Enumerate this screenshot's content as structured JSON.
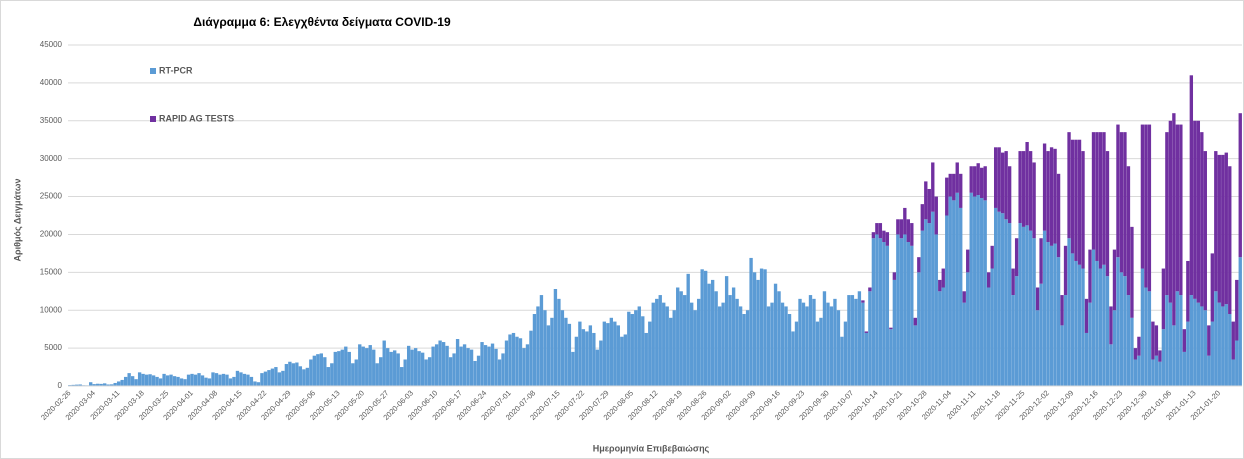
{
  "chart_data": {
    "type": "stacked_bar",
    "title": "Διάγραμμα 6: Ελεγχθέντα δείγματα COVID-19",
    "x_label": "Ημερομηνία Επιβεβαιώσης",
    "y_label": "Αριθμός Δειγμάτων",
    "legend": "upper left",
    "grid": true,
    "ylim": [
      0,
      45000
    ],
    "yticks": [
      0,
      5000,
      10000,
      15000,
      20000,
      25000,
      30000,
      35000,
      40000,
      45000
    ],
    "categories": [
      "2020-02-26",
      null,
      null,
      null,
      null,
      null,
      null,
      "2020-03-04",
      null,
      null,
      null,
      null,
      null,
      null,
      "2020-03-11",
      null,
      null,
      null,
      null,
      null,
      null,
      "2020-03-18",
      null,
      null,
      null,
      null,
      null,
      null,
      "2020-03-25",
      null,
      null,
      null,
      null,
      null,
      null,
      "2020-04-01",
      null,
      null,
      null,
      null,
      null,
      null,
      "2020-04-08",
      null,
      null,
      null,
      null,
      null,
      null,
      "2020-04-15",
      null,
      null,
      null,
      null,
      null,
      null,
      "2020-04-22",
      null,
      null,
      null,
      null,
      null,
      null,
      "2020-04-29",
      null,
      null,
      null,
      null,
      null,
      null,
      "2020-05-06",
      null,
      null,
      null,
      null,
      null,
      null,
      "2020-05-13",
      null,
      null,
      null,
      null,
      null,
      null,
      "2020-05-20",
      null,
      null,
      null,
      null,
      null,
      null,
      "2020-05-27",
      null,
      null,
      null,
      null,
      null,
      null,
      "2020-06-03",
      null,
      null,
      null,
      null,
      null,
      null,
      "2020-06-10",
      null,
      null,
      null,
      null,
      null,
      null,
      "2020-06-17",
      null,
      null,
      null,
      null,
      null,
      null,
      "2020-06-24",
      null,
      null,
      null,
      null,
      null,
      null,
      "2020-07-01",
      null,
      null,
      null,
      null,
      null,
      null,
      "2020-07-08",
      null,
      null,
      null,
      null,
      null,
      null,
      "2020-07-15",
      null,
      null,
      null,
      null,
      null,
      null,
      "2020-07-22",
      null,
      null,
      null,
      null,
      null,
      null,
      "2020-07-29",
      null,
      null,
      null,
      null,
      null,
      null,
      "2020-08-05",
      null,
      null,
      null,
      null,
      null,
      null,
      "2020-08-12",
      null,
      null,
      null,
      null,
      null,
      null,
      "2020-08-19",
      null,
      null,
      null,
      null,
      null,
      null,
      "2020-08-26",
      null,
      null,
      null,
      null,
      null,
      null,
      "2020-09-02",
      null,
      null,
      null,
      null,
      null,
      null,
      "2020-09-09",
      null,
      null,
      null,
      null,
      null,
      null,
      "2020-09-16",
      null,
      null,
      null,
      null,
      null,
      null,
      "2020-09-23",
      null,
      null,
      null,
      null,
      null,
      null,
      "2020-09-30",
      null,
      null,
      null,
      null,
      null,
      null,
      "2020-10-07",
      null,
      null,
      null,
      null,
      null,
      null,
      "2020-10-14",
      null,
      null,
      null,
      null,
      null,
      null,
      "2020-10-21",
      null,
      null,
      null,
      null,
      null,
      null,
      "2020-10-28",
      null,
      null,
      null,
      null,
      null,
      null,
      "2020-11-04",
      null,
      null,
      null,
      null,
      null,
      null,
      "2020-11-11",
      null,
      null,
      null,
      null,
      null,
      null,
      "2020-11-18",
      null,
      null,
      null,
      null,
      null,
      null,
      "2020-11-25",
      null,
      null,
      null,
      null,
      null,
      null,
      "2020-12-02",
      null,
      null,
      null,
      null,
      null,
      null,
      "2020-12-09",
      null,
      null,
      null,
      null,
      null,
      null,
      "2020-12-16",
      null,
      null,
      null,
      null,
      null,
      null,
      "2020-12-23",
      null,
      null,
      null,
      null,
      null,
      null,
      "2020-12-30",
      null,
      null,
      null,
      null,
      null,
      null,
      "2021-01-06",
      null,
      null,
      null,
      null,
      null,
      null,
      "2021-01-13",
      null,
      null,
      null,
      null,
      null,
      null,
      "2021-01-20",
      null,
      null,
      null,
      null,
      null,
      null
    ],
    "series": [
      {
        "name": "RT-PCR",
        "color": "#5b9bd5",
        "values": [
          120,
          150,
          180,
          200,
          100,
          90,
          500,
          250,
          300,
          280,
          350,
          200,
          220,
          400,
          600,
          800,
          1200,
          1700,
          1300,
          900,
          1800,
          1600,
          1500,
          1550,
          1400,
          1200,
          1000,
          1600,
          1400,
          1500,
          1300,
          1200,
          1000,
          900,
          1500,
          1600,
          1500,
          1700,
          1400,
          1100,
          1000,
          1800,
          1700,
          1500,
          1600,
          1500,
          1000,
          1200,
          2000,
          1800,
          1600,
          1500,
          1200,
          600,
          500,
          1700,
          1900,
          2100,
          2300,
          2500,
          1800,
          2000,
          2900,
          3200,
          3000,
          3100,
          2600,
          2200,
          2400,
          3500,
          4000,
          4200,
          4300,
          3800,
          2500,
          3000,
          4500,
          4600,
          4800,
          5200,
          4500,
          3000,
          3500,
          5500,
          5200,
          5000,
          5400,
          4800,
          3000,
          3800,
          6000,
          5000,
          4500,
          4700,
          4300,
          2500,
          3500,
          5300,
          4800,
          5000,
          4600,
          4400,
          3500,
          3800,
          5200,
          5500,
          6000,
          5800,
          5300,
          3800,
          4300,
          6200,
          5200,
          5500,
          5000,
          4800,
          3300,
          4000,
          5800,
          5400,
          5200,
          5600,
          4900,
          3500,
          4300,
          6000,
          6800,
          7000,
          6500,
          6300,
          5000,
          5500,
          7300,
          9500,
          10500,
          12000,
          10000,
          8000,
          9000,
          12800,
          11500,
          10000,
          9000,
          8200,
          4500,
          6500,
          8500,
          7500,
          7200,
          8000,
          7000,
          4800,
          6000,
          8500,
          8300,
          9000,
          8500,
          8000,
          6500,
          6800,
          9800,
          9500,
          10000,
          10500,
          9200,
          7000,
          8500,
          11000,
          11500,
          12000,
          11000,
          10500,
          9000,
          10000,
          13000,
          12500,
          12000,
          14800,
          11000,
          10000,
          11500,
          15400,
          15200,
          13500,
          14000,
          12500,
          10500,
          11000,
          14500,
          12000,
          13000,
          11500,
          10500,
          9500,
          10000,
          16900,
          15000,
          14000,
          15500,
          15400,
          10500,
          11000,
          13500,
          12500,
          11000,
          10500,
          9500,
          7200,
          8500,
          11500,
          11000,
          10500,
          12000,
          11500,
          8500,
          9000,
          12500,
          11000,
          10500,
          11500,
          10000,
          6500,
          8500,
          12000,
          12000,
          11500,
          12500,
          11000,
          7000,
          12500,
          19500,
          20000,
          19500,
          19000,
          18500,
          7500,
          14000,
          20000,
          19500,
          20000,
          19000,
          18500,
          8000,
          15000,
          20500,
          22000,
          21500,
          23000,
          20000,
          12500,
          13000,
          22500,
          25000,
          24500,
          25500,
          23500,
          11000,
          15000,
          25500,
          25000,
          25200,
          24800,
          24500,
          13000,
          15500,
          23500,
          23000,
          22800,
          22000,
          21500,
          12000,
          14500,
          21500,
          21000,
          21200,
          20500,
          19500,
          10000,
          13500,
          20500,
          19000,
          18500,
          18800,
          17000,
          8000,
          12000,
          19500,
          17500,
          16500,
          16000,
          15500,
          7000,
          11000,
          18000,
          16500,
          15500,
          16000,
          14500,
          5500,
          10000,
          17000,
          15000,
          14500,
          12000,
          9000,
          3500,
          4000,
          15500,
          13000,
          12500,
          3500,
          4000,
          3200,
          7500,
          12000,
          11000,
          8000,
          12500,
          12000,
          4500,
          8500,
          12000,
          11500,
          11000,
          10500,
          10000,
          4000,
          8500,
          12500,
          11000,
          10500,
          10800,
          9500,
          3500,
          6000,
          17000
        ]
      },
      {
        "name": "RAPID AG TESTS",
        "color": "#7030a0",
        "values": [
          0,
          0,
          0,
          0,
          0,
          0,
          0,
          0,
          0,
          0,
          0,
          0,
          0,
          0,
          0,
          0,
          0,
          0,
          0,
          0,
          0,
          0,
          0,
          0,
          0,
          0,
          0,
          0,
          0,
          0,
          0,
          0,
          0,
          0,
          0,
          0,
          0,
          0,
          0,
          0,
          0,
          0,
          0,
          0,
          0,
          0,
          0,
          0,
          0,
          0,
          0,
          0,
          0,
          0,
          0,
          0,
          0,
          0,
          0,
          0,
          0,
          0,
          0,
          0,
          0,
          0,
          0,
          0,
          0,
          0,
          0,
          0,
          0,
          0,
          0,
          0,
          0,
          0,
          0,
          0,
          0,
          0,
          0,
          0,
          0,
          0,
          0,
          0,
          0,
          0,
          0,
          0,
          0,
          0,
          0,
          0,
          0,
          0,
          0,
          0,
          0,
          0,
          0,
          0,
          0,
          0,
          0,
          0,
          0,
          0,
          0,
          0,
          0,
          0,
          0,
          0,
          0,
          0,
          0,
          0,
          0,
          0,
          0,
          0,
          0,
          0,
          0,
          0,
          0,
          0,
          0,
          0,
          0,
          0,
          0,
          0,
          0,
          0,
          0,
          0,
          0,
          0,
          0,
          0,
          0,
          0,
          0,
          0,
          0,
          0,
          0,
          0,
          0,
          0,
          0,
          0,
          0,
          0,
          0,
          0,
          0,
          0,
          0,
          0,
          0,
          0,
          0,
          0,
          0,
          0,
          0,
          0,
          0,
          0,
          0,
          0,
          0,
          0,
          0,
          0,
          0,
          0,
          0,
          0,
          0,
          0,
          0,
          0,
          0,
          0,
          0,
          0,
          0,
          0,
          0,
          0,
          0,
          0,
          0,
          0,
          0,
          0,
          0,
          0,
          0,
          0,
          0,
          0,
          0,
          0,
          0,
          0,
          0,
          0,
          0,
          0,
          0,
          0,
          0,
          0,
          0,
          0,
          0,
          0,
          0,
          0,
          0,
          300,
          200,
          500,
          800,
          1500,
          2000,
          1500,
          1800,
          200,
          1000,
          2000,
          2500,
          3500,
          3000,
          3000,
          1000,
          2000,
          3500,
          5000,
          4500,
          6500,
          5000,
          1500,
          2500,
          5000,
          3000,
          3500,
          4000,
          4500,
          1500,
          3000,
          3500,
          4000,
          4200,
          4000,
          4500,
          2000,
          3000,
          8000,
          8500,
          8000,
          9000,
          7500,
          3500,
          5000,
          9500,
          10000,
          11000,
          10500,
          10000,
          3000,
          6000,
          11500,
          12000,
          13000,
          12500,
          11000,
          4000,
          6500,
          14000,
          15000,
          16000,
          16500,
          15500,
          4500,
          7000,
          15500,
          17000,
          18000,
          17500,
          16500,
          5000,
          8000,
          17500,
          18500,
          19000,
          17000,
          12000,
          1500,
          2500,
          19000,
          21500,
          22000,
          5000,
          4000,
          1500,
          8000,
          21500,
          24000,
          28000,
          22000,
          22500,
          3000,
          8000,
          29000,
          23500,
          24000,
          23000,
          21000,
          4000,
          9000,
          18500,
          19500,
          20000,
          20000,
          19500,
          5000,
          8000,
          19000
        ]
      }
    ]
  }
}
